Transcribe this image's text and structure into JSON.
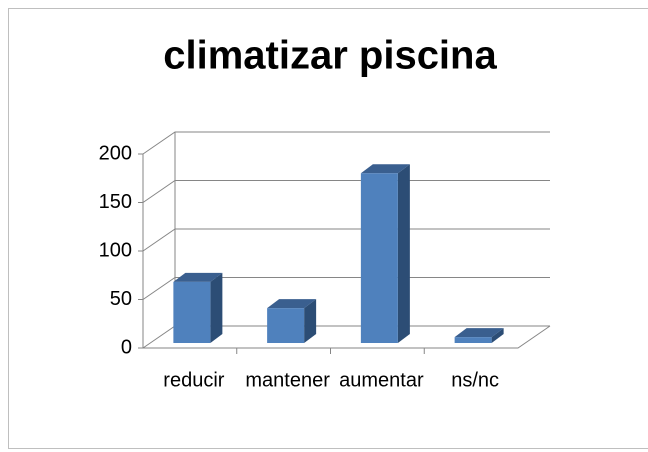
{
  "chart_data": {
    "type": "bar3d",
    "title": "climatizar piscina",
    "categories": [
      "reducir",
      "mantener",
      "aumentar",
      "ns/nc"
    ],
    "values": [
      63,
      36,
      175,
      6
    ],
    "color": "#4f81bd",
    "ylim": [
      0,
      200
    ],
    "yticks": [
      0,
      50,
      100,
      150,
      200
    ],
    "grid": true
  }
}
